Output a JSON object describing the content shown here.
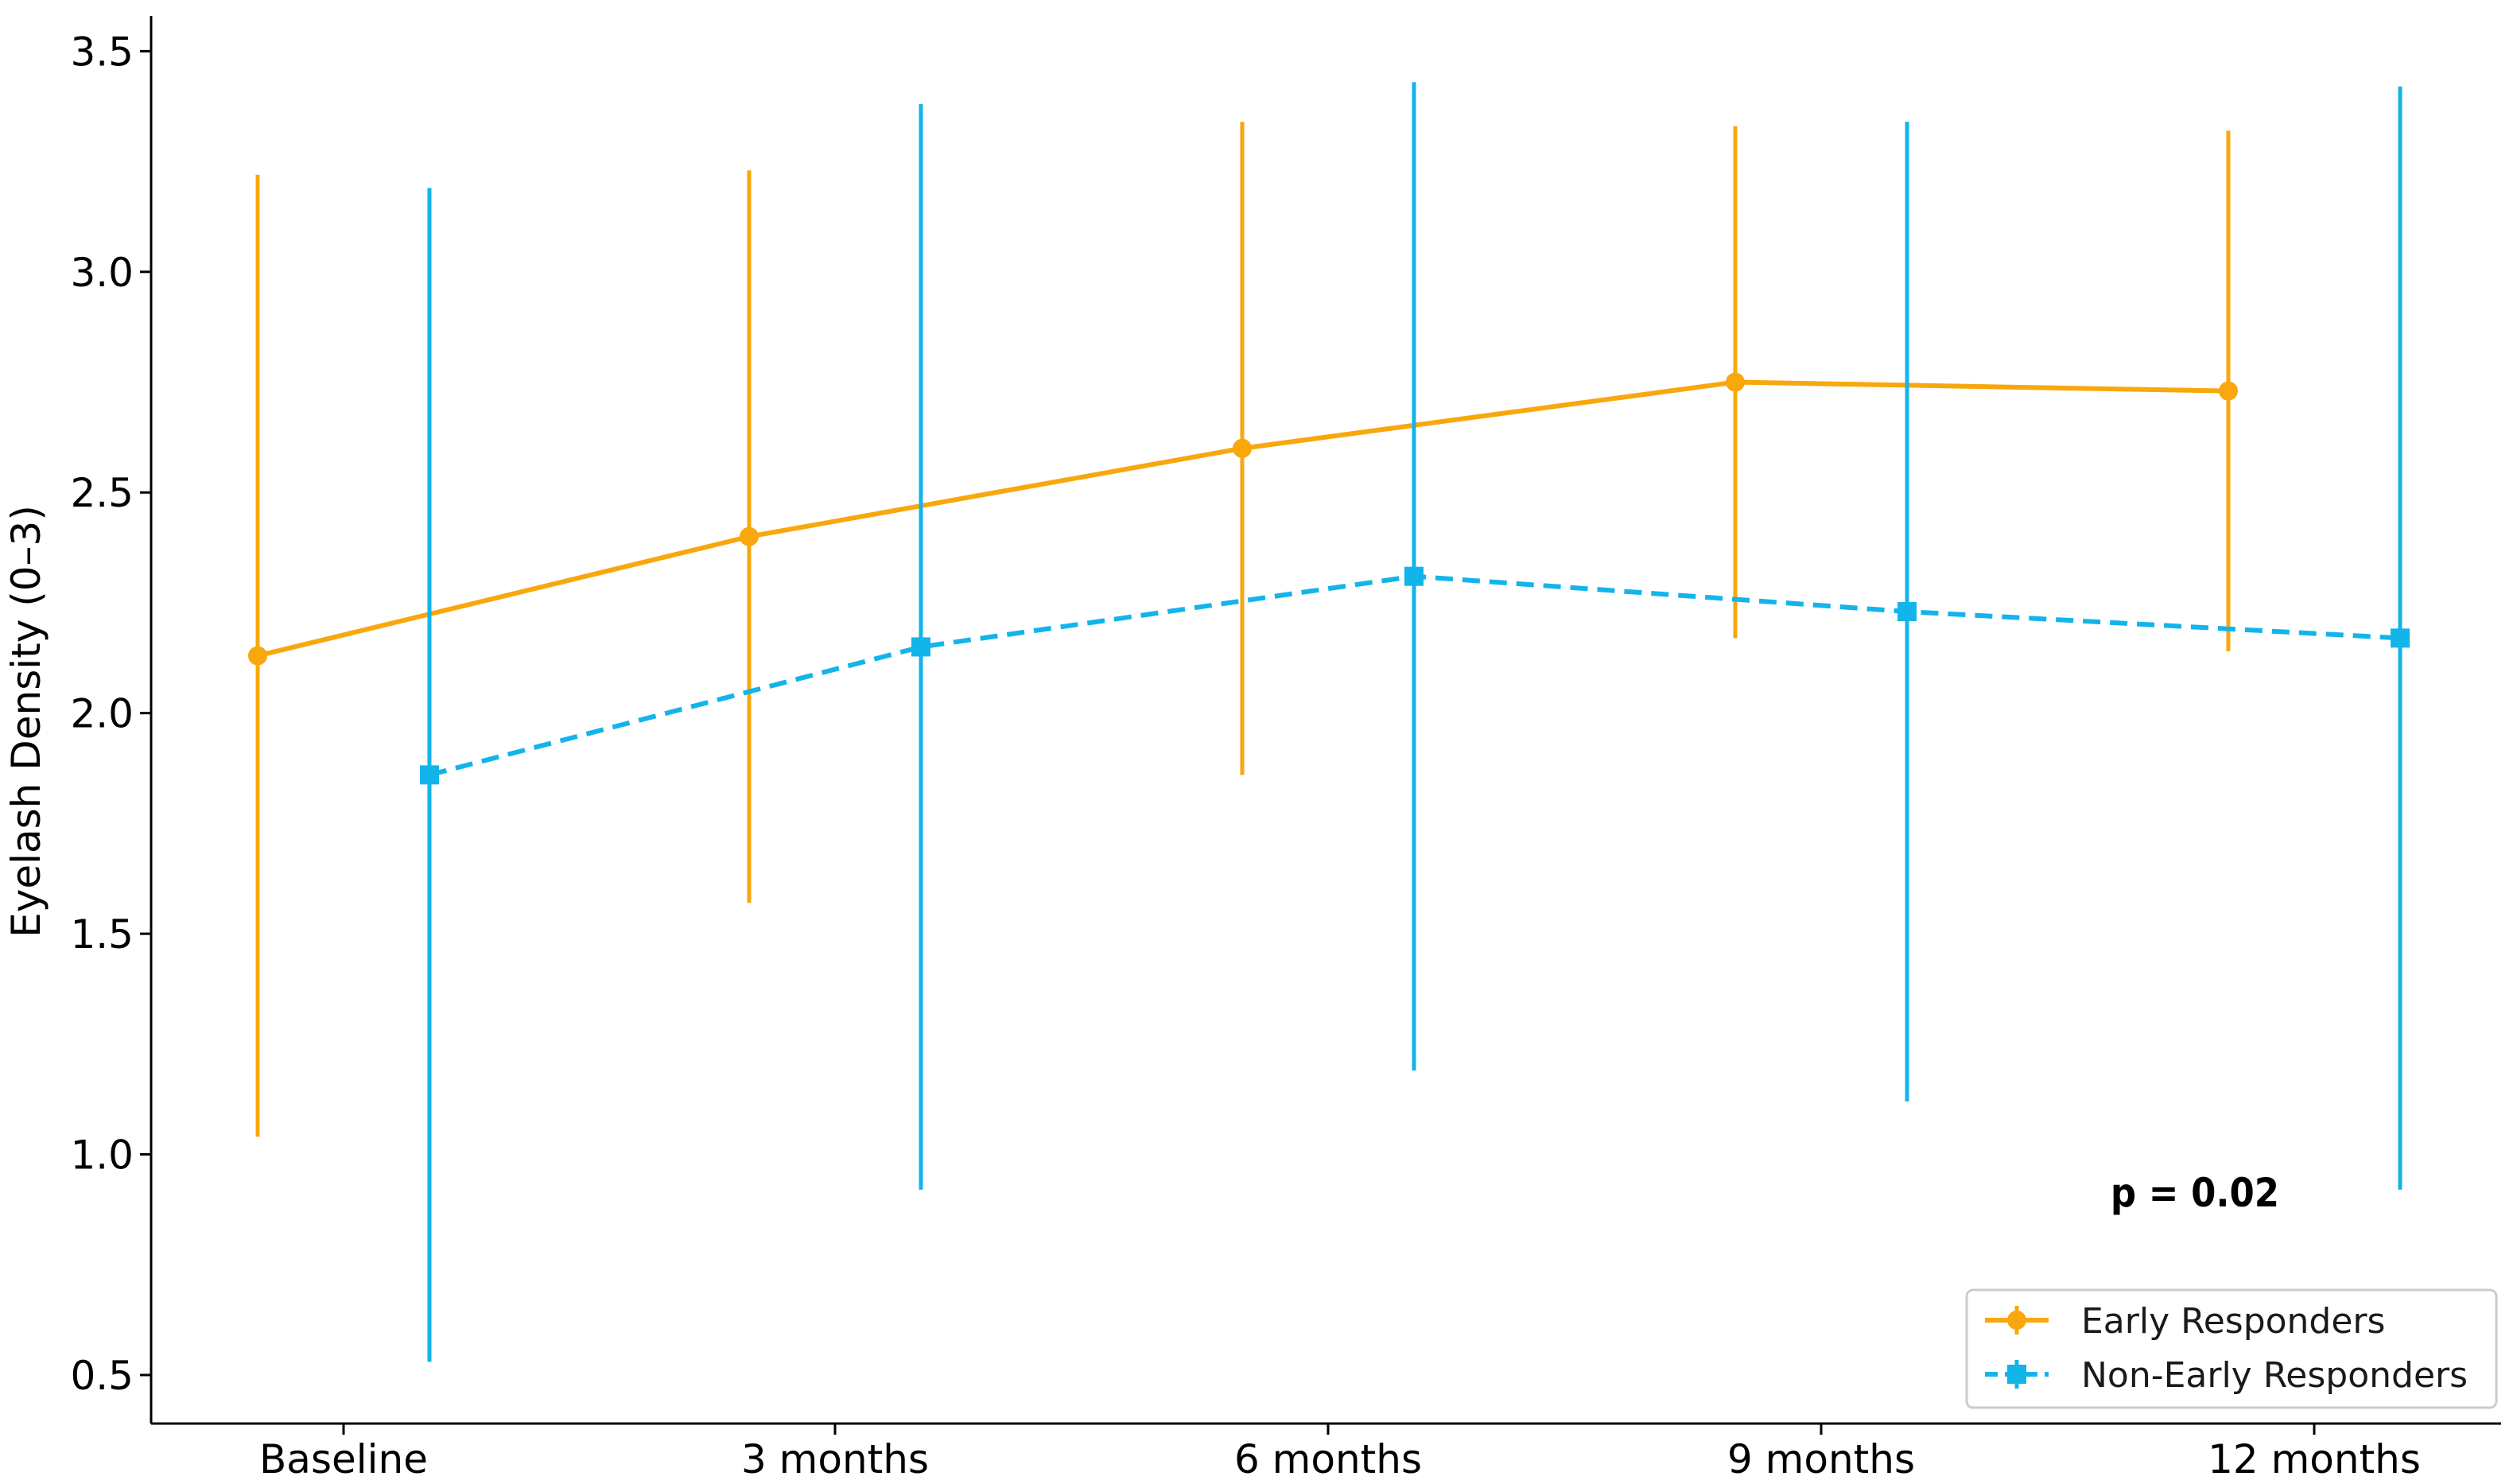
{
  "chart_data": {
    "type": "line",
    "categories": [
      "Baseline",
      "3 months",
      "6 months",
      "9 months",
      "12 months"
    ],
    "ylabel": "Eyelash Density (0–3)",
    "xlabel": "",
    "ylim": [
      0.39,
      3.58
    ],
    "yticks": [
      "0.5",
      "1.0",
      "1.5",
      "2.0",
      "2.5",
      "3.0",
      "3.5"
    ],
    "ytick_values": [
      0.5,
      1.0,
      1.5,
      2.0,
      2.5,
      3.0,
      3.5
    ],
    "grid": false,
    "legend_position": "bottom-right",
    "annotation": "p = 0.02",
    "series": [
      {
        "name": "Early Responders",
        "color": "#F8A70D",
        "line_style": "solid",
        "marker": "circle",
        "values": [
          2.13,
          2.4,
          2.6,
          2.75,
          2.73
        ],
        "errors": [
          1.09,
          0.83,
          0.74,
          0.58,
          0.59
        ]
      },
      {
        "name": "Non-Early Responders",
        "color": "#13B4EA",
        "line_style": "dashed",
        "marker": "square",
        "values": [
          1.86,
          2.15,
          2.31,
          2.23,
          2.17
        ],
        "errors": [
          1.33,
          1.23,
          1.12,
          1.11,
          1.25
        ]
      }
    ]
  }
}
